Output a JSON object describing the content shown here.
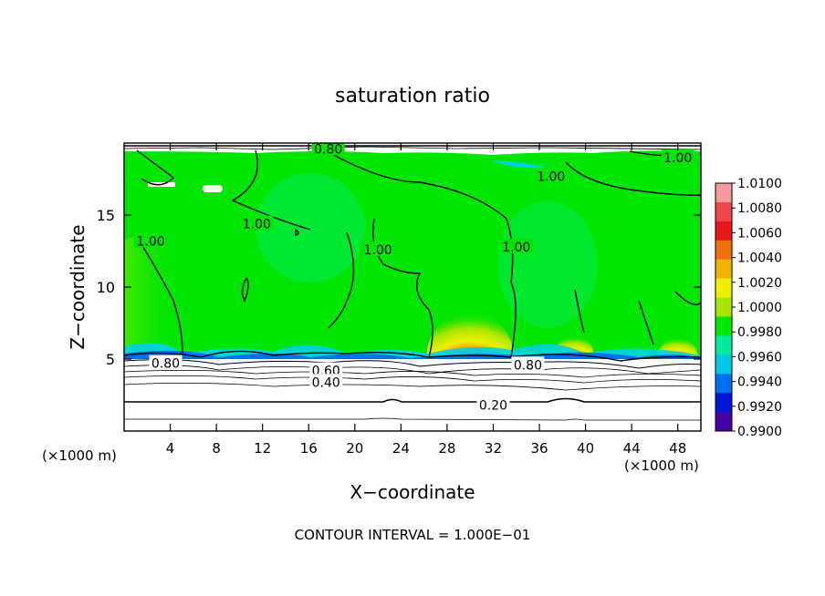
{
  "chart_data": {
    "type": "heatmap",
    "title": "saturation ratio",
    "xlabel": "X−coordinate",
    "ylabel": "Z−coordinate",
    "x_unit_left": "(×1000 m)",
    "x_unit_right": "(×1000 m)",
    "xlim": [
      0,
      50
    ],
    "ylim": [
      0,
      20
    ],
    "x_ticks": [
      {
        "v": 4,
        "label": "4"
      },
      {
        "v": 8,
        "label": "8"
      },
      {
        "v": 12,
        "label": "12"
      },
      {
        "v": 16,
        "label": "16"
      },
      {
        "v": 20,
        "label": "20"
      },
      {
        "v": 24,
        "label": "24"
      },
      {
        "v": 28,
        "label": "28"
      },
      {
        "v": 32,
        "label": "32"
      },
      {
        "v": 36,
        "label": "36"
      },
      {
        "v": 40,
        "label": "40"
      },
      {
        "v": 44,
        "label": "44"
      },
      {
        "v": 48,
        "label": "48"
      }
    ],
    "y_ticks": [
      {
        "v": 5,
        "label": "5"
      },
      {
        "v": 10,
        "label": "10"
      },
      {
        "v": 15,
        "label": "15"
      }
    ],
    "colorbar": {
      "levels": [
        "1.0100",
        "1.0080",
        "1.0060",
        "1.0040",
        "1.0020",
        "1.0000",
        "0.9980",
        "0.9960",
        "0.9940",
        "0.9920",
        "0.9900"
      ],
      "colors": [
        "#f59aa0",
        "#f04848",
        "#e81818",
        "#f07010",
        "#f0b400",
        "#eef000",
        "#a8e600",
        "#00e800",
        "#00eaa0",
        "#00c8e8",
        "#0070f0",
        "#0018d8",
        "#4a00a8"
      ]
    },
    "background_color": "#00e600",
    "warm_spots": [
      {
        "x": 30.0,
        "z": 5.1,
        "label": ""
      },
      {
        "x": 39.0,
        "z": 5.2,
        "label": ""
      },
      {
        "x": 48.0,
        "z": 5.1,
        "label": ""
      }
    ],
    "contour_labels": [
      {
        "text": "0.80",
        "x": 17.7,
        "z": 19.6
      },
      {
        "text": "1.00",
        "x": 48.0,
        "z": 19.0
      },
      {
        "text": "1.00",
        "x": 37.0,
        "z": 17.7
      },
      {
        "text": "1.00",
        "x": 11.5,
        "z": 14.4
      },
      {
        "text": "1.00",
        "x": 2.3,
        "z": 13.2
      },
      {
        "text": "1.00",
        "x": 22.0,
        "z": 12.6
      },
      {
        "text": "1.00",
        "x": 34.0,
        "z": 12.8
      },
      {
        "text": "0.80",
        "x": 3.6,
        "z": 4.7
      },
      {
        "text": "0.60",
        "x": 17.5,
        "z": 4.2
      },
      {
        "text": "0.40",
        "x": 17.5,
        "z": 3.4
      },
      {
        "text": "0.80",
        "x": 35.0,
        "z": 4.6
      },
      {
        "text": "0.20",
        "x": 32.0,
        "z": 1.8
      }
    ],
    "footer": "CONTOUR INTERVAL = 1.000E−01"
  }
}
